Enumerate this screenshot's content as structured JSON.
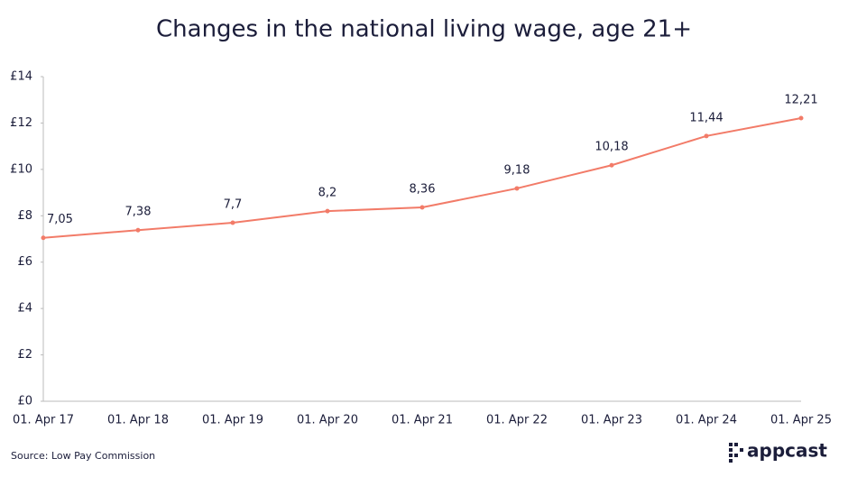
{
  "chart_data": {
    "type": "line",
    "title": "Changes in the national living wage, age 21+",
    "categories": [
      "01. Apr 17",
      "01. Apr 18",
      "01. Apr 19",
      "01. Apr 20",
      "01. Apr 21",
      "01. Apr 22",
      "01. Apr 23",
      "01. Apr 24",
      "01. Apr 25"
    ],
    "values": [
      7.05,
      7.38,
      7.7,
      8.2,
      8.36,
      9.18,
      10.18,
      11.44,
      12.21
    ],
    "value_labels": [
      "7,05",
      "7,38",
      "7,7",
      "8,2",
      "8,36",
      "9,18",
      "10,18",
      "11,44",
      "12,21"
    ],
    "color": "#f27b68",
    "ylim": [
      0,
      14
    ],
    "yticks": [
      {
        "value": 0,
        "label": "£0"
      },
      {
        "value": 2,
        "label": "£2"
      },
      {
        "value": 4,
        "label": "£4"
      },
      {
        "value": 6,
        "label": "£6"
      },
      {
        "value": 8,
        "label": "£8"
      },
      {
        "value": 10,
        "label": "£10"
      },
      {
        "value": 12,
        "label": "£12"
      },
      {
        "value": 14,
        "label": "£14"
      }
    ],
    "grid": false,
    "source": "Source: Low Pay Commission",
    "logo": "appcast"
  }
}
